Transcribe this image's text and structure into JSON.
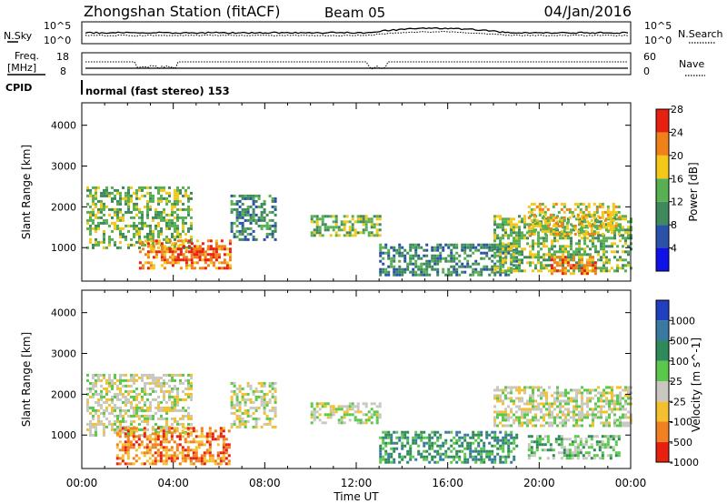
{
  "header": {
    "title": "Zhongshan Station (fitACF)",
    "beam": "Beam 05",
    "date": "04/Jan/2016"
  },
  "top_panels": {
    "nsky_label": "N.Sky",
    "nsearch_label": "N.Search",
    "freq_label_1": "Freq.",
    "freq_label_2": "[MHz]",
    "nave_label": "Nave",
    "cpid_label": "CPID",
    "cpid_text": "normal (fast stereo) 153",
    "noise_ticks": [
      "10^5",
      "10^0"
    ],
    "freq_ticks": [
      "18",
      "8"
    ],
    "nave_ticks": [
      "60",
      "0"
    ]
  },
  "chart_data": [
    {
      "type": "heatmap",
      "title": "",
      "xlabel": "",
      "ylabel": "Slant Range [km]",
      "x_ticks": [
        "00:00",
        "04:00",
        "08:00",
        "12:00",
        "16:00",
        "20:00",
        "00:00"
      ],
      "xlim": [
        0,
        24
      ],
      "y_ticks": [
        1000,
        2000,
        3000,
        4000
      ],
      "ylim": [
        180,
        4550
      ],
      "colorbar": {
        "label": "Power [dB]",
        "ticks": [
          4,
          8,
          12,
          16,
          20,
          24,
          28
        ],
        "colors": [
          "#1010e8",
          "#2a52a8",
          "#3e8a5c",
          "#58b052",
          "#f4c818",
          "#f08018",
          "#e82010"
        ]
      },
      "blobs": [
        {
          "t0": 0.2,
          "t1": 4.8,
          "r0": 1000,
          "r1": 2500,
          "level": 3
        },
        {
          "t0": 2.5,
          "t1": 6.5,
          "r0": 500,
          "r1": 1200,
          "level": 5
        },
        {
          "t0": 3.8,
          "t1": 5.8,
          "r0": 700,
          "r1": 1000,
          "level": 6
        },
        {
          "t0": 6.5,
          "t1": 8.5,
          "r0": 1200,
          "r1": 2300,
          "level": 2
        },
        {
          "t0": 10.0,
          "t1": 13.0,
          "r0": 1300,
          "r1": 1800,
          "level": 3
        },
        {
          "t0": 13.0,
          "t1": 19.0,
          "r0": 300,
          "r1": 1100,
          "level": 2
        },
        {
          "t0": 18.0,
          "t1": 24.0,
          "r0": 400,
          "r1": 1800,
          "level": 3
        },
        {
          "t0": 19.5,
          "t1": 23.5,
          "r0": 1300,
          "r1": 2100,
          "level": 4
        },
        {
          "t0": 20.5,
          "t1": 22.5,
          "r0": 350,
          "r1": 800,
          "level": 5
        }
      ]
    },
    {
      "type": "heatmap",
      "title": "",
      "xlabel": "Time UT",
      "ylabel": "Slant Range [km]",
      "x_ticks": [
        "00:00",
        "04:00",
        "08:00",
        "12:00",
        "16:00",
        "20:00",
        "00:00"
      ],
      "xlim": [
        0,
        24
      ],
      "y_ticks": [
        1000,
        2000,
        3000,
        4000
      ],
      "ylim": [
        180,
        4550
      ],
      "colorbar": {
        "label": "Velocity [m s^-1]",
        "ticks": [
          1000,
          500,
          100,
          25,
          -25,
          -100,
          -500,
          -1000
        ],
        "colors": [
          "#2040c0",
          "#3a7aa0",
          "#2f8a5a",
          "#5ac84a",
          "#c8c8c0",
          "#f4c030",
          "#f08020",
          "#e82010"
        ]
      },
      "blobs": [
        {
          "t0": 0.2,
          "t1": 4.8,
          "r0": 1000,
          "r1": 2500,
          "level": 4
        },
        {
          "t0": 1.5,
          "t1": 6.5,
          "r0": 300,
          "r1": 1200,
          "level": 6
        },
        {
          "t0": 6.5,
          "t1": 8.5,
          "r0": 1200,
          "r1": 2300,
          "level": 4
        },
        {
          "t0": 10.0,
          "t1": 13.0,
          "r0": 1300,
          "r1": 1800,
          "level": 4
        },
        {
          "t0": 13.0,
          "t1": 19.0,
          "r0": 300,
          "r1": 1100,
          "level": 2
        },
        {
          "t0": 18.0,
          "t1": 24.0,
          "r0": 1200,
          "r1": 2200,
          "level": 4
        },
        {
          "t0": 19.5,
          "t1": 23.5,
          "r0": 400,
          "r1": 1000,
          "level": 3
        }
      ]
    }
  ]
}
